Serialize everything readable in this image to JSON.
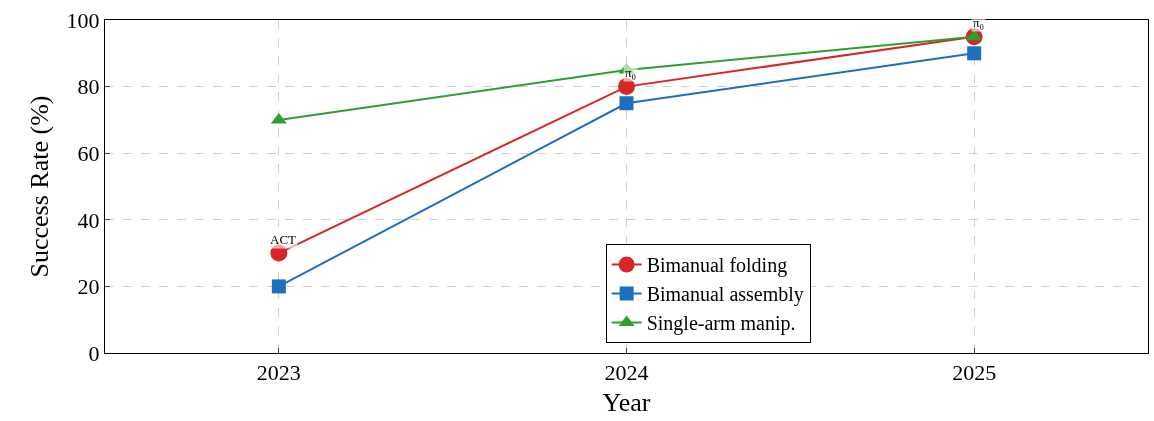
{
  "chart_data": {
    "type": "line",
    "xlabel": "Year",
    "ylabel": "Success Rate (%)",
    "x": [
      2023,
      2024,
      2025
    ],
    "series": [
      {
        "name": "Bimanual folding",
        "color": "#d62728",
        "values": [
          30,
          80,
          95
        ],
        "marker": "circle"
      },
      {
        "name": "Bimanual assembly",
        "color": "#1f6fbf",
        "values": [
          20,
          75,
          90
        ],
        "marker": "square"
      },
      {
        "name": "Single-arm manip.",
        "color": "#2ca02c",
        "values": [
          70,
          85,
          95
        ],
        "marker": "triangle"
      }
    ],
    "xlim": [
      2022.5,
      2025.5
    ],
    "xticks": [
      2023,
      2024,
      2025
    ],
    "ylim": [
      0,
      100
    ],
    "yticks": [
      0,
      20,
      40,
      60,
      80,
      100
    ],
    "grid": true,
    "legend": "bottom",
    "line_style": "solid",
    "annotations": [
      {
        "text": "ACT",
        "x": 2023,
        "y": 30
      },
      {
        "text": "π₀",
        "x": 2024,
        "y": 80
      },
      {
        "text": "π₀",
        "x": 2025,
        "y": 95
      }
    ]
  }
}
